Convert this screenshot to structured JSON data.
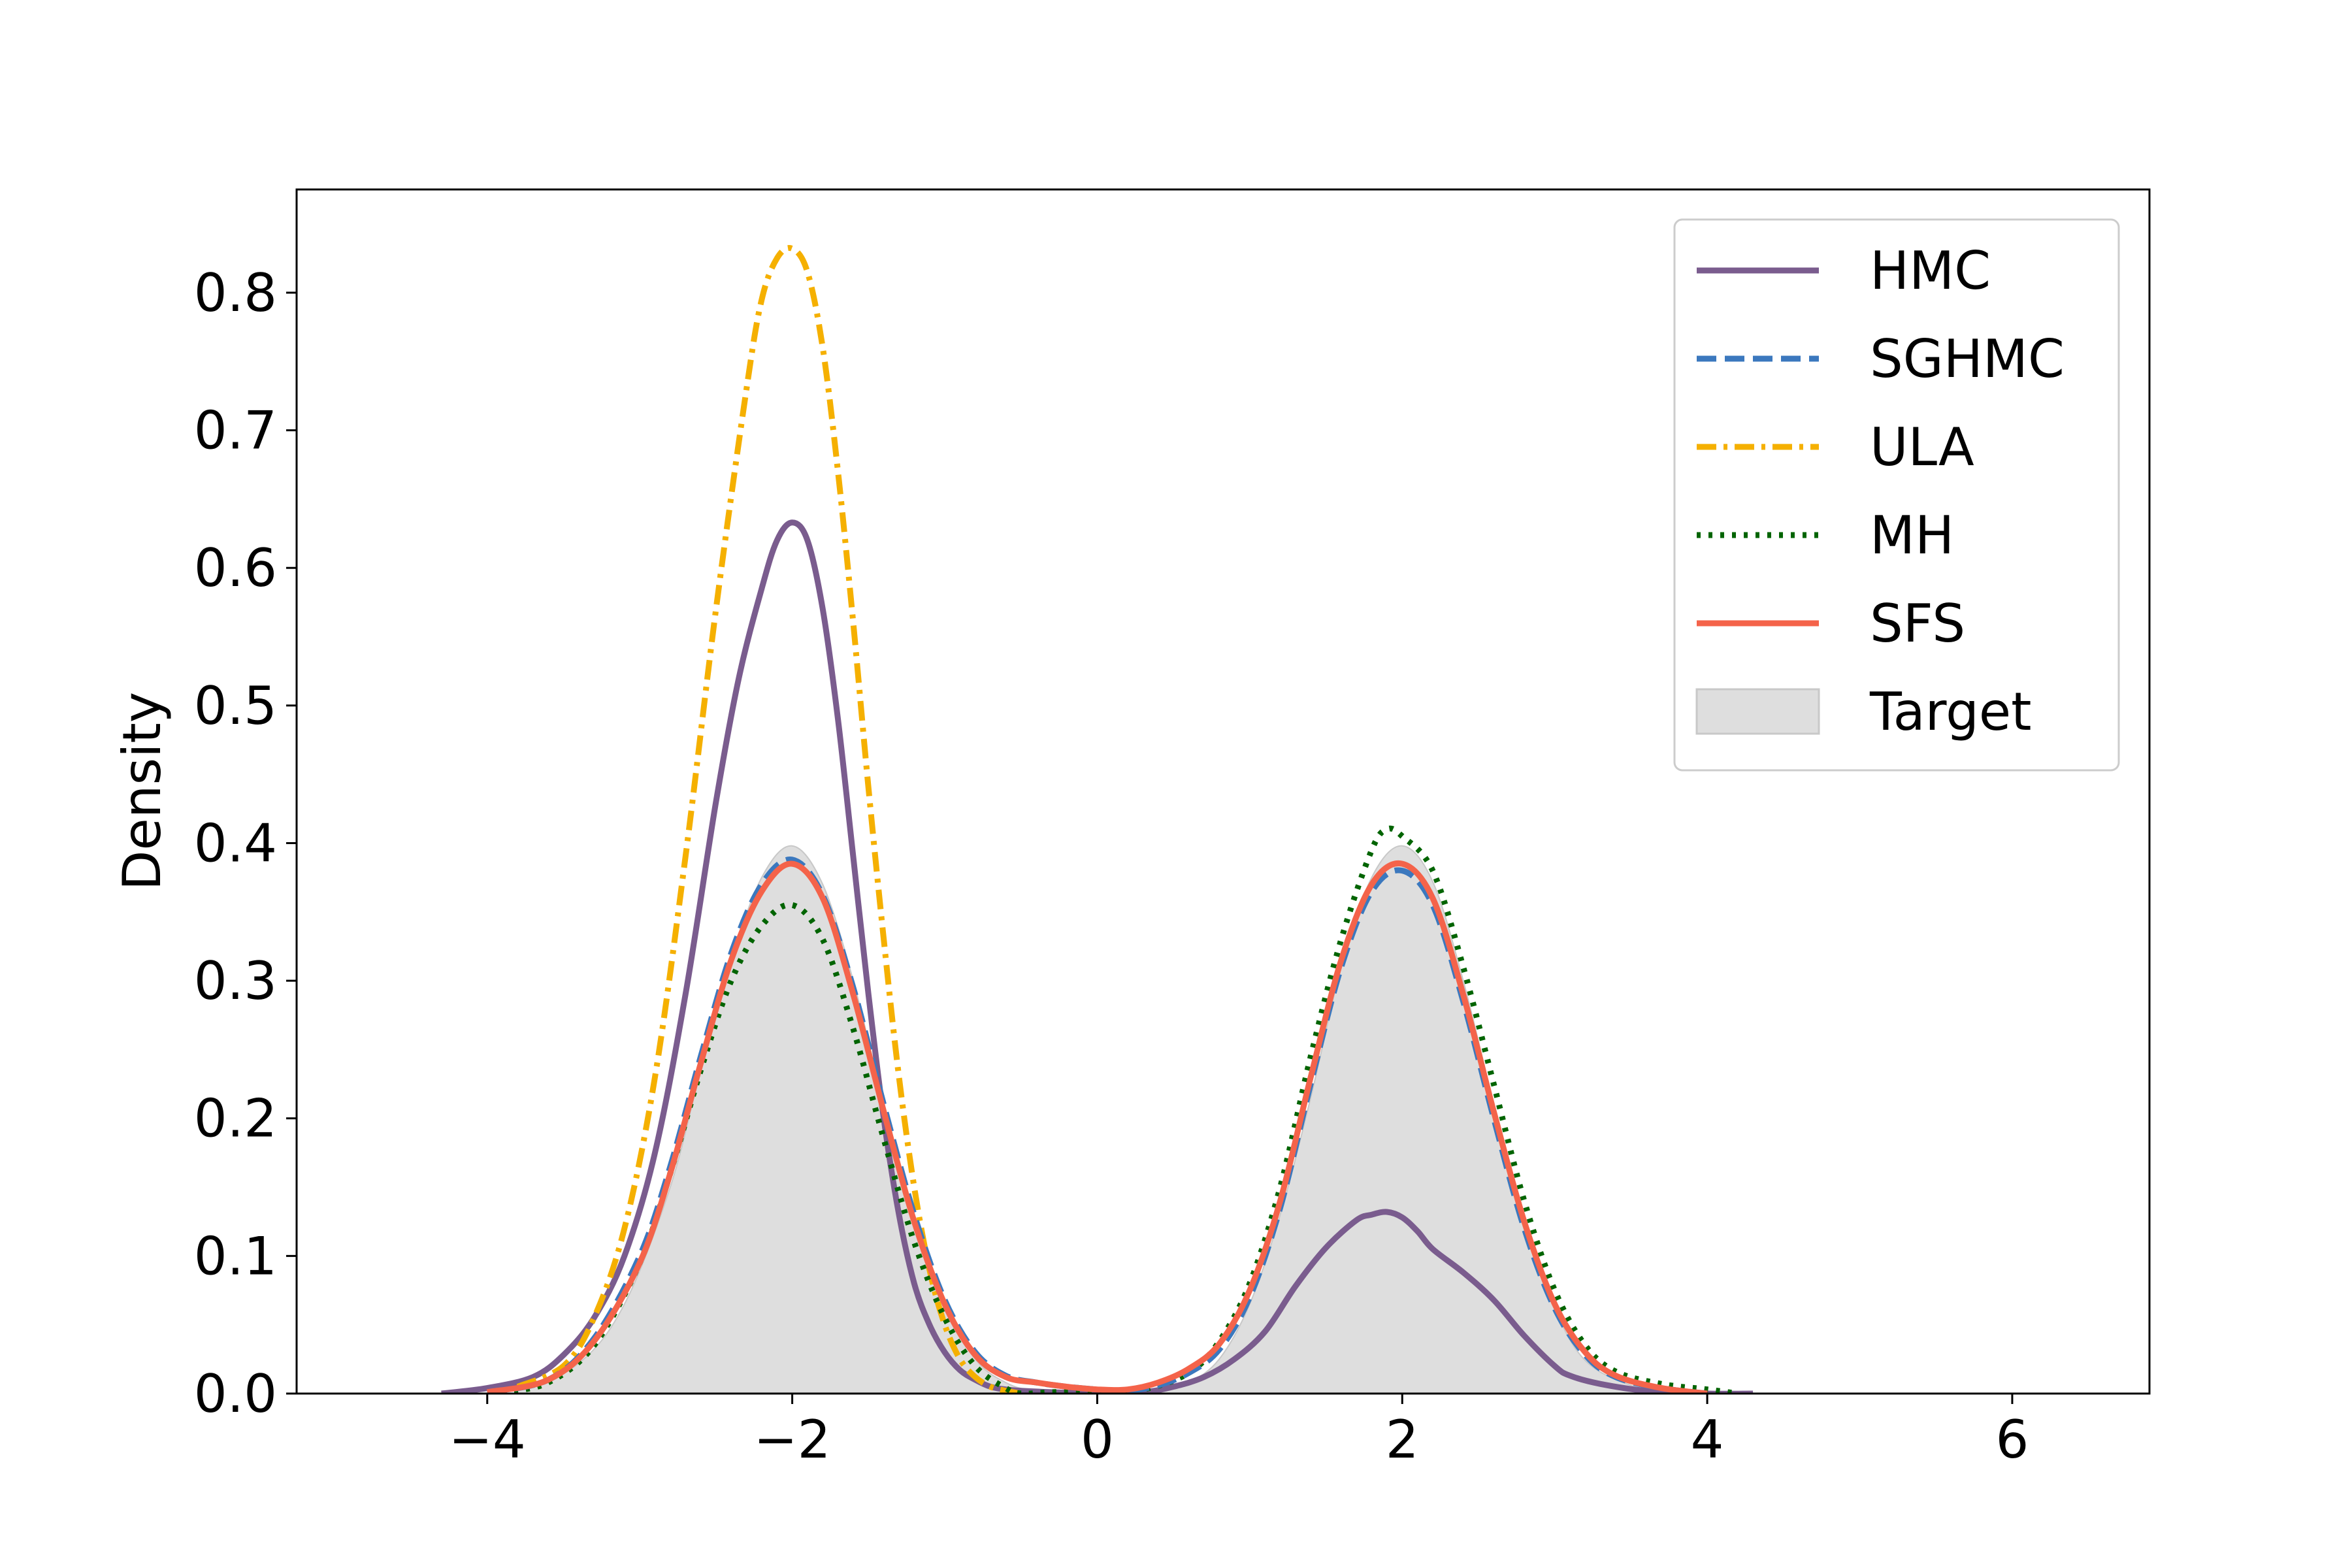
{
  "chart_data": {
    "type": "line",
    "title": "",
    "xlabel": "",
    "ylabel": "Density",
    "xlim": [
      -5.25,
      6.9
    ],
    "ylim": [
      0,
      0.875
    ],
    "xticks": [
      -4,
      -2,
      0,
      2,
      4,
      6
    ],
    "yticks": [
      0.0,
      0.1,
      0.2,
      0.3,
      0.4,
      0.5,
      0.6,
      0.7,
      0.8
    ],
    "xtick_labels": [
      "−4",
      "−2",
      "0",
      "2",
      "4",
      "6"
    ],
    "ytick_labels": [
      "0.0",
      "0.1",
      "0.2",
      "0.3",
      "0.4",
      "0.5",
      "0.6",
      "0.7",
      "0.8"
    ],
    "grid": false,
    "legend_position": "top-right",
    "series": [
      {
        "name": "HMC",
        "style": "solid",
        "color": "#7a5c8e",
        "x": [
          -4.3,
          -4.0,
          -3.7,
          -3.5,
          -3.3,
          -3.1,
          -2.9,
          -2.7,
          -2.5,
          -2.35,
          -2.2,
          -2.1,
          -2.0,
          -1.9,
          -1.8,
          -1.7,
          -1.6,
          -1.5,
          -1.4,
          -1.3,
          -1.2,
          -1.1,
          -1.0,
          -0.9,
          -0.8,
          -0.7,
          -0.6,
          -0.5,
          -0.3,
          0.0,
          0.3,
          0.5,
          0.7,
          0.9,
          1.1,
          1.3,
          1.5,
          1.7,
          1.8,
          1.9,
          2.0,
          2.1,
          2.2,
          2.4,
          2.6,
          2.8,
          3.0,
          3.1,
          3.3,
          3.6,
          4.0,
          4.3
        ],
        "y": [
          0.0,
          0.004,
          0.012,
          0.028,
          0.055,
          0.1,
          0.175,
          0.29,
          0.43,
          0.52,
          0.585,
          0.62,
          0.633,
          0.62,
          0.57,
          0.49,
          0.39,
          0.29,
          0.2,
          0.13,
          0.08,
          0.05,
          0.03,
          0.017,
          0.01,
          0.005,
          0.003,
          0.002,
          0.001,
          0.0,
          0.001,
          0.005,
          0.012,
          0.025,
          0.045,
          0.078,
          0.106,
          0.126,
          0.13,
          0.132,
          0.128,
          0.118,
          0.105,
          0.088,
          0.068,
          0.042,
          0.02,
          0.013,
          0.007,
          0.002,
          0.0,
          0.0
        ]
      },
      {
        "name": "SGHMC",
        "style": "dashed",
        "color": "#3b78be",
        "x": [
          -4.0,
          -3.6,
          -3.3,
          -3.0,
          -2.8,
          -2.6,
          -2.4,
          -2.2,
          -2.0,
          -1.8,
          -1.6,
          -1.4,
          -1.2,
          -1.0,
          -0.8,
          -0.6,
          -0.4,
          -0.2,
          0.0,
          0.2,
          0.4,
          0.6,
          0.8,
          1.0,
          1.2,
          1.4,
          1.6,
          1.8,
          2.0,
          2.2,
          2.4,
          2.6,
          2.8,
          3.0,
          3.2,
          3.4,
          3.7,
          4.0
        ],
        "y": [
          0.001,
          0.01,
          0.04,
          0.1,
          0.165,
          0.245,
          0.32,
          0.37,
          0.388,
          0.362,
          0.295,
          0.21,
          0.13,
          0.068,
          0.03,
          0.013,
          0.008,
          0.005,
          0.003,
          0.002,
          0.006,
          0.015,
          0.032,
          0.07,
          0.135,
          0.225,
          0.31,
          0.365,
          0.38,
          0.355,
          0.285,
          0.2,
          0.12,
          0.062,
          0.028,
          0.012,
          0.004,
          0.0
        ]
      },
      {
        "name": "ULA",
        "style": "dashdot",
        "color": "#f5b000",
        "x": [
          -3.8,
          -3.5,
          -3.3,
          -3.1,
          -2.9,
          -2.7,
          -2.5,
          -2.3,
          -2.2,
          -2.1,
          -2.0,
          -1.9,
          -1.8,
          -1.7,
          -1.6,
          -1.5,
          -1.4,
          -1.3,
          -1.2,
          -1.1,
          -1.0,
          -0.9,
          -0.8,
          -0.7,
          -0.6,
          -0.5
        ],
        "y": [
          0.005,
          0.02,
          0.055,
          0.12,
          0.23,
          0.39,
          0.57,
          0.73,
          0.795,
          0.825,
          0.832,
          0.815,
          0.76,
          0.67,
          0.56,
          0.44,
          0.33,
          0.23,
          0.15,
          0.09,
          0.05,
          0.025,
          0.012,
          0.005,
          0.002,
          0.0
        ]
      },
      {
        "name": "MH",
        "style": "dotted",
        "color": "#006400",
        "x": [
          -3.9,
          -3.6,
          -3.3,
          -3.0,
          -2.8,
          -2.6,
          -2.4,
          -2.2,
          -2.0,
          -1.8,
          -1.6,
          -1.4,
          -1.2,
          -1.0,
          -0.8,
          -0.6,
          -0.5,
          -0.3,
          0.0,
          0.3,
          0.6,
          0.8,
          1.0,
          1.2,
          1.4,
          1.6,
          1.8,
          1.9,
          2.0,
          2.2,
          2.4,
          2.6,
          2.8,
          3.0,
          3.2,
          3.4,
          3.7,
          4.0,
          4.2
        ],
        "y": [
          0.001,
          0.008,
          0.035,
          0.095,
          0.16,
          0.235,
          0.3,
          0.34,
          0.355,
          0.33,
          0.265,
          0.185,
          0.11,
          0.055,
          0.02,
          0.004,
          0.0,
          0.001,
          0.002,
          0.003,
          0.015,
          0.038,
          0.08,
          0.15,
          0.245,
          0.33,
          0.395,
          0.41,
          0.405,
          0.38,
          0.31,
          0.225,
          0.14,
          0.075,
          0.035,
          0.016,
          0.007,
          0.003,
          0.0
        ]
      },
      {
        "name": "SFS",
        "style": "solid",
        "color": "#f4634a",
        "x": [
          -4.0,
          -3.6,
          -3.3,
          -3.0,
          -2.8,
          -2.6,
          -2.4,
          -2.2,
          -2.0,
          -1.8,
          -1.6,
          -1.4,
          -1.2,
          -1.0,
          -0.8,
          -0.6,
          -0.4,
          -0.2,
          0.0,
          0.2,
          0.4,
          0.6,
          0.8,
          1.0,
          1.2,
          1.4,
          1.6,
          1.8,
          2.0,
          2.2,
          2.4,
          2.6,
          2.8,
          3.0,
          3.2,
          3.4,
          3.7,
          4.0
        ],
        "y": [
          0.001,
          0.01,
          0.038,
          0.095,
          0.16,
          0.24,
          0.315,
          0.365,
          0.385,
          0.36,
          0.29,
          0.205,
          0.125,
          0.065,
          0.028,
          0.012,
          0.008,
          0.005,
          0.003,
          0.003,
          0.008,
          0.018,
          0.036,
          0.075,
          0.14,
          0.23,
          0.315,
          0.37,
          0.385,
          0.36,
          0.29,
          0.205,
          0.125,
          0.065,
          0.03,
          0.013,
          0.004,
          0.0
        ]
      },
      {
        "name": "Target",
        "style": "fill",
        "color": "#dedede",
        "x": [
          -3.8,
          -3.4,
          -3.1,
          -2.8,
          -2.6,
          -2.4,
          -2.2,
          -2.0,
          -1.8,
          -1.6,
          -1.4,
          -1.2,
          -1.0,
          -0.8,
          -0.6,
          -0.4,
          0.0,
          0.4,
          0.6,
          0.8,
          1.0,
          1.2,
          1.4,
          1.6,
          1.8,
          2.0,
          2.2,
          2.4,
          2.6,
          2.8,
          3.0,
          3.2,
          3.5,
          3.8
        ],
        "y": [
          0.003,
          0.022,
          0.065,
          0.15,
          0.235,
          0.315,
          0.375,
          0.398,
          0.37,
          0.3,
          0.21,
          0.125,
          0.065,
          0.025,
          0.008,
          0.002,
          0.0,
          0.002,
          0.008,
          0.025,
          0.065,
          0.13,
          0.215,
          0.31,
          0.375,
          0.398,
          0.372,
          0.3,
          0.21,
          0.125,
          0.062,
          0.024,
          0.006,
          0.0
        ]
      }
    ]
  }
}
